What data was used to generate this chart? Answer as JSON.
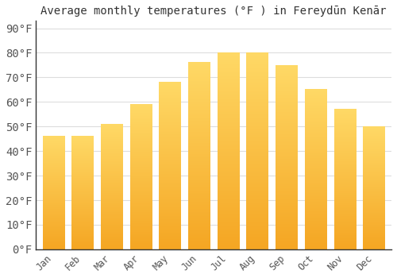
{
  "title": "Average monthly temperatures (°F ) in Fereydūn Kenār",
  "months": [
    "Jan",
    "Feb",
    "Mar",
    "Apr",
    "May",
    "Jun",
    "Jul",
    "Aug",
    "Sep",
    "Oct",
    "Nov",
    "Dec"
  ],
  "values": [
    46,
    46,
    51,
    59,
    68,
    76,
    80,
    80,
    75,
    65,
    57,
    50
  ],
  "bar_color_bottom": "#F5A623",
  "bar_color_top": "#FFD966",
  "background_color": "#ffffff",
  "plot_bg_color": "#ffffff",
  "grid_color": "#dddddd",
  "spine_color": "#333333",
  "yticks": [
    0,
    10,
    20,
    30,
    40,
    50,
    60,
    70,
    80,
    90
  ],
  "ylim": [
    0,
    93
  ],
  "tick_label_color": "#555555",
  "title_fontsize": 10,
  "tick_fontsize": 8.5,
  "bar_width": 0.75
}
